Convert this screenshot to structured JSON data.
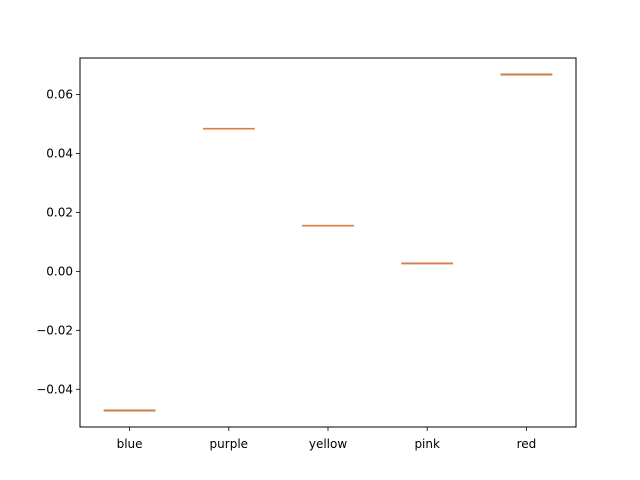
{
  "chart_data": {
    "type": "box",
    "categories": [
      "blue",
      "purple",
      "yellow",
      "pink",
      "red"
    ],
    "values": [
      -0.0472,
      0.0484,
      0.0155,
      0.0027,
      0.0668
    ],
    "ylim": [
      -0.0528,
      0.0724
    ],
    "yticks": [
      -0.04,
      -0.02,
      0.0,
      0.02,
      0.04,
      0.06
    ],
    "ytick_labels": [
      "−0.04",
      "−0.02",
      "0.00",
      "0.02",
      "0.04",
      "0.06"
    ],
    "title": "",
    "xlabel": "",
    "ylabel": "",
    "grid": false,
    "colors": {
      "box_line": "#000000",
      "median_line": "#e07b39",
      "axes": "#000000",
      "background": "#ffffff"
    }
  }
}
